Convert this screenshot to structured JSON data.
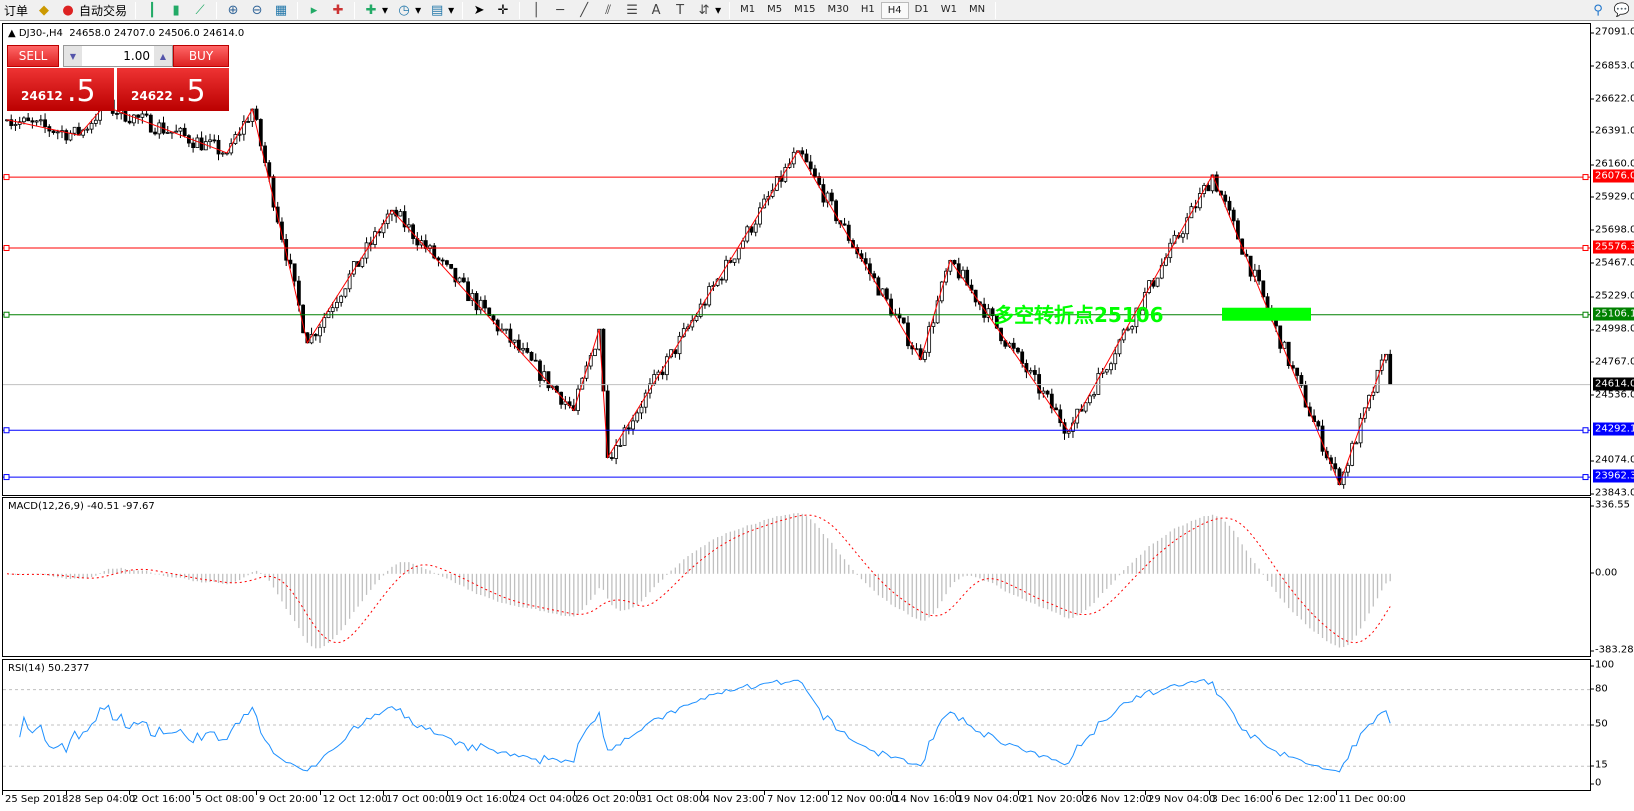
{
  "toolbar": {
    "order_label": "订单",
    "autotrade_label": "自动交易",
    "timeframes": [
      "M1",
      "M5",
      "M15",
      "M30",
      "H1",
      "H4",
      "D1",
      "W1",
      "MN"
    ],
    "active_timeframe": "H4"
  },
  "chart": {
    "title": "DJ30-,H4",
    "ohlc": "24658.0 24707.0 24506.0 24614.0",
    "sell_label": "SELL",
    "buy_label": "BUY",
    "lot": "1.00",
    "sell_price_main": "24612",
    "sell_price_big": ".5",
    "buy_price_main": "24622",
    "buy_price_big": ".5",
    "price_axis": [
      "27091.0",
      "26853.0",
      "26622.0",
      "26391.0",
      "26160.0",
      "25929.0",
      "25698.0",
      "25467.0",
      "25229.0",
      "24998.0",
      "24767.0",
      "24536.0",
      "24074.0",
      "23843.0"
    ],
    "price_range": [
      23843.0,
      27091.0
    ],
    "levels": [
      {
        "price": "26076.0",
        "color": "#ff0000"
      },
      {
        "price": "25576.3",
        "color": "#ff0000"
      },
      {
        "price": "25106.1",
        "color": "#008000"
      },
      {
        "price": "24614.0",
        "color": "#000000",
        "line": "#c0c0c0"
      },
      {
        "price": "24292.1",
        "color": "#0000ff"
      },
      {
        "price": "23962.3",
        "color": "#0000ff"
      }
    ],
    "annotation": "多空转折点25106",
    "annotation_color": "#00ff00",
    "zigzag_color": "#ff0000",
    "zigzag": [
      {
        "bar": 0,
        "price": 26480
      },
      {
        "bar": 17,
        "price": 26371
      },
      {
        "bar": 23,
        "price": 26577
      },
      {
        "bar": 52,
        "price": 26246
      },
      {
        "bar": 58,
        "price": 26555
      },
      {
        "bar": 71,
        "price": 24908
      },
      {
        "bar": 91,
        "price": 25842
      },
      {
        "bar": 134,
        "price": 24431
      },
      {
        "bar": 140,
        "price": 25004
      },
      {
        "bar": 142,
        "price": 24100
      },
      {
        "bar": 187,
        "price": 26261
      },
      {
        "bar": 216,
        "price": 24791
      },
      {
        "bar": 223,
        "price": 25489
      },
      {
        "bar": 251,
        "price": 24284
      },
      {
        "bar": 285,
        "price": 26091
      },
      {
        "bar": 315,
        "price": 23909
      },
      {
        "bar": 326,
        "price": 24827
      },
      {
        "bar": 327,
        "price": 24614
      }
    ],
    "time_axis": [
      "25 Sep 2018",
      "28 Sep 04:00",
      "2 Oct 16:00",
      "5 Oct 08:00",
      "9 Oct 20:00",
      "12 Oct 12:00",
      "17 Oct 00:00",
      "19 Oct 16:00",
      "24 Oct 04:00",
      "26 Oct 20:00",
      "31 Oct 08:00",
      "4 Nov 23:00",
      "7 Nov 12:00",
      "12 Nov 00:00",
      "14 Nov 16:00",
      "19 Nov 04:00",
      "21 Nov 20:00",
      "26 Nov 12:00",
      "29 Nov 04:00",
      "3 Dec 16:00",
      "6 Dec 12:00",
      "11 Dec 00:00"
    ]
  },
  "macd": {
    "title": "MACD(12,26,9) -40.51 -97.67",
    "axis": [
      "336.55",
      "0.00",
      "-383.28"
    ],
    "range": [
      -383.28,
      336.55
    ],
    "histogram_color": "#c0c0c0",
    "signal_color": "#ff0000"
  },
  "rsi": {
    "title": "RSI(14) 50.2377",
    "axis": [
      "100",
      "80",
      "50",
      "15",
      "0"
    ],
    "levels": [
      80,
      50,
      15
    ],
    "line_color": "#1e90ff"
  }
}
